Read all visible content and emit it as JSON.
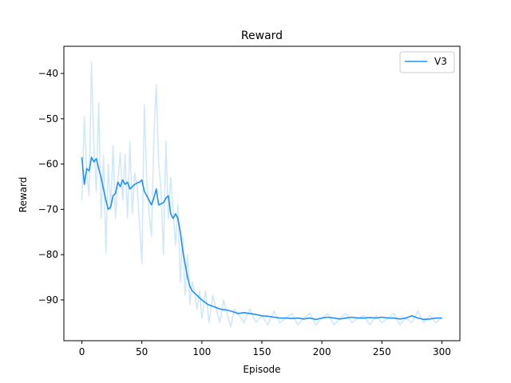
{
  "chart_data": {
    "type": "line",
    "title": "Reward",
    "xlabel": "Episode",
    "ylabel": "Reward",
    "xlim": [
      -15,
      315
    ],
    "ylim": [
      -99,
      -34
    ],
    "xticks": [
      0,
      50,
      100,
      150,
      200,
      250,
      300
    ],
    "yticks": [
      -40,
      -50,
      -60,
      -70,
      -80,
      -90
    ],
    "grid": false,
    "legend_position": "top-right",
    "series": [
      {
        "name": "V3",
        "role": "smoothed",
        "color": "#1e90ff",
        "x": [
          0,
          2,
          4,
          6,
          8,
          10,
          12,
          14,
          16,
          18,
          20,
          22,
          24,
          26,
          28,
          30,
          32,
          34,
          36,
          38,
          40,
          42,
          44,
          46,
          48,
          50,
          52,
          54,
          56,
          58,
          60,
          62,
          64,
          66,
          68,
          70,
          72,
          74,
          76,
          78,
          80,
          82,
          84,
          86,
          88,
          90,
          92,
          94,
          96,
          98,
          100,
          105,
          110,
          115,
          120,
          125,
          130,
          135,
          140,
          145,
          150,
          155,
          160,
          165,
          170,
          175,
          180,
          185,
          190,
          195,
          200,
          205,
          210,
          215,
          220,
          225,
          230,
          235,
          240,
          245,
          250,
          255,
          260,
          265,
          270,
          275,
          280,
          285,
          290,
          295,
          300
        ],
        "y": [
          -58.5,
          -64.5,
          -61,
          -61.5,
          -58.5,
          -59.5,
          -58.8,
          -61,
          -63,
          -65.5,
          -68,
          -70,
          -69.5,
          -67,
          -66.5,
          -64,
          -65,
          -63.5,
          -64.5,
          -64,
          -65.5,
          -65,
          -64.5,
          -64.2,
          -64,
          -63.5,
          -66,
          -67,
          -68,
          -69,
          -67.5,
          -65.5,
          -69,
          -68.8,
          -68.5,
          -67.5,
          -67,
          -71,
          -72,
          -71,
          -72,
          -75,
          -79,
          -82,
          -85,
          -87,
          -88,
          -88.5,
          -89,
          -89.5,
          -90,
          -91,
          -91.5,
          -92,
          -92.2,
          -92.5,
          -93,
          -92.8,
          -93,
          -93.2,
          -93.5,
          -93.6,
          -93.8,
          -94,
          -94,
          -94.1,
          -94,
          -94.2,
          -94,
          -94.3,
          -94,
          -93.8,
          -94,
          -94.2,
          -94,
          -93.8,
          -94,
          -94,
          -93.9,
          -94,
          -93.8,
          -94,
          -94,
          -94.2,
          -94,
          -93.5,
          -94,
          -94.3,
          -94.2,
          -94,
          -94
        ]
      },
      {
        "name": "",
        "role": "raw",
        "color": "#cfe7fb",
        "x": [
          0,
          2,
          4,
          6,
          8,
          10,
          12,
          14,
          16,
          18,
          20,
          22,
          24,
          26,
          28,
          30,
          32,
          34,
          36,
          38,
          40,
          42,
          44,
          46,
          48,
          50,
          52,
          54,
          56,
          58,
          60,
          62,
          64,
          66,
          68,
          70,
          72,
          74,
          76,
          78,
          80,
          82,
          84,
          86,
          88,
          90,
          92,
          94,
          96,
          98,
          100,
          103,
          106,
          109,
          112,
          115,
          118,
          121,
          124,
          127,
          130,
          135,
          140,
          145,
          150,
          155,
          160,
          165,
          170,
          175,
          180,
          185,
          190,
          195,
          200,
          205,
          210,
          215,
          220,
          225,
          230,
          235,
          240,
          245,
          250,
          255,
          260,
          265,
          270,
          275,
          280,
          285,
          290,
          295,
          300
        ],
        "y": [
          -68,
          -49.5,
          -62,
          -67,
          -37.5,
          -56,
          -66,
          -46.5,
          -72,
          -58,
          -79.5,
          -60,
          -70,
          -56,
          -72,
          -64,
          -57.5,
          -68,
          -58,
          -72,
          -55,
          -71,
          -62,
          -65,
          -73,
          -82,
          -47,
          -63,
          -71,
          -76,
          -54,
          -42.5,
          -59.5,
          -66,
          -80,
          -55,
          -72,
          -63,
          -70,
          -78,
          -69,
          -86,
          -76,
          -89,
          -80,
          -91,
          -86,
          -88.5,
          -92,
          -88,
          -94,
          -88,
          -95,
          -89,
          -92,
          -95,
          -90,
          -93,
          -96,
          -92,
          -93,
          -95,
          -92,
          -95,
          -93.5,
          -95.5,
          -92.5,
          -95,
          -94,
          -93,
          -95.5,
          -94,
          -93,
          -95.5,
          -94,
          -93,
          -95.5,
          -94,
          -93,
          -95,
          -94,
          -93.5,
          -95.5,
          -93.5,
          -95,
          -94,
          -93,
          -95.5,
          -94,
          -95,
          -92.5,
          -95,
          -93.5,
          -95,
          -94
        ]
      }
    ]
  }
}
